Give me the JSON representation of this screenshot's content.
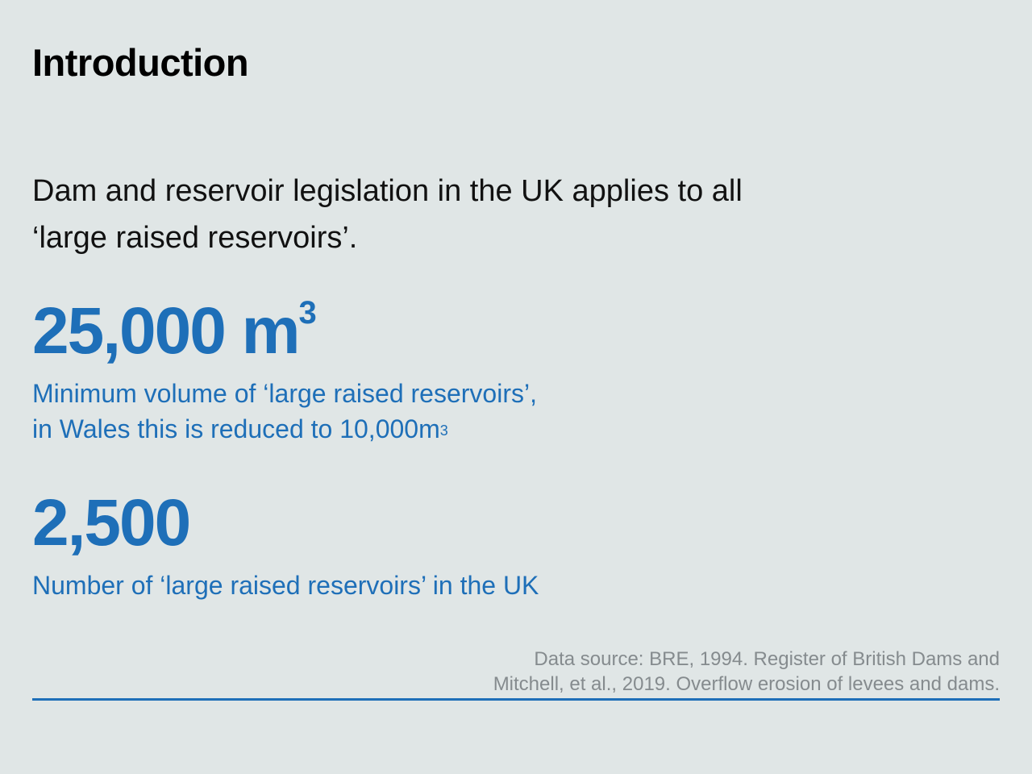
{
  "heading": "Introduction",
  "intro": {
    "line1": "Dam and reservoir legislation in the UK applies to all",
    "line2": "‘large raised reservoirs’."
  },
  "stats": [
    {
      "value": "25,000 m",
      "value_superscript": "3",
      "desc_line1": "Minimum volume of ‘large raised reservoirs’,",
      "desc_line2": "in Wales this is reduced to 10,000m",
      "desc_line2_superscript": "3"
    },
    {
      "value": "2,500",
      "desc_line1": "Number of ‘large raised reservoirs’ in the UK"
    }
  ],
  "source": {
    "line1": "Data source: BRE, 1994. Register of British Dams and",
    "line2": "Mitchell, et al., 2019. Overflow erosion of levees and dams."
  },
  "colors": {
    "background": "#e0e6e6",
    "accent": "#1e6fb8",
    "heading": "#000000",
    "source": "#858b8e"
  }
}
